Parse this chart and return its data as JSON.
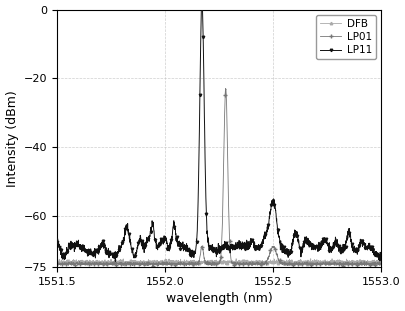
{
  "title": "",
  "xlabel": "wavelength (nm)",
  "ylabel": "Intensity (dBm)",
  "xlim": [
    1551.5,
    1553.0
  ],
  "ylim": [
    -75,
    0
  ],
  "yticks": [
    0,
    -20,
    -40,
    -60,
    -75
  ],
  "xticks": [
    1551.5,
    1552.0,
    1552.5,
    1553.0
  ],
  "legend": [
    "LP11",
    "LP01",
    "DFB"
  ],
  "background_color": "#ffffff",
  "line_color_lp11": "#111111",
  "line_color_lp01": "#777777",
  "line_color_dfb": "#aaaaaa",
  "grid_color": "#bbbbbb"
}
